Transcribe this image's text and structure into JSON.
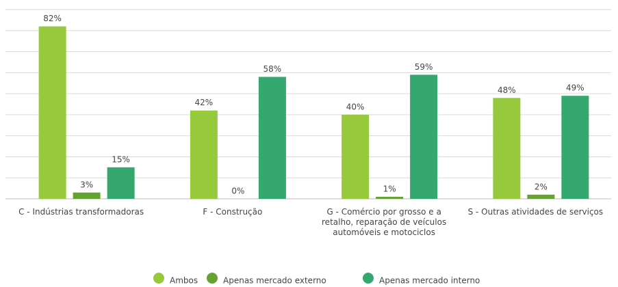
{
  "chart_data": {
    "type": "bar",
    "categories": [
      "C - Indústrias transformadoras",
      "F - Construção",
      "G - Comércio por grosso e a retalho, reparação de veículos automóveis e motociclos",
      "S - Outras atividades de serviços"
    ],
    "series": [
      {
        "name": "Ambos",
        "color": "#97c93c",
        "values": [
          82,
          42,
          40,
          48
        ],
        "value_labels": [
          "82%",
          "42%",
          "40%",
          "48%"
        ]
      },
      {
        "name": "Apenas mercado externo",
        "color": "#64a234",
        "values": [
          3,
          0,
          1,
          2
        ],
        "value_labels": [
          "3%",
          "0%",
          "1%",
          "2%"
        ]
      },
      {
        "name": "Apenas mercado interno",
        "color": "#35a86f",
        "values": [
          15,
          58,
          59,
          49
        ],
        "value_labels": [
          "15%",
          "58%",
          "59%",
          "49%"
        ]
      }
    ],
    "ylim": [
      0,
      90
    ],
    "yticks": [
      0,
      10,
      20,
      30,
      40,
      50,
      60,
      70,
      80,
      90
    ],
    "grid": true,
    "legend": "bottom"
  }
}
